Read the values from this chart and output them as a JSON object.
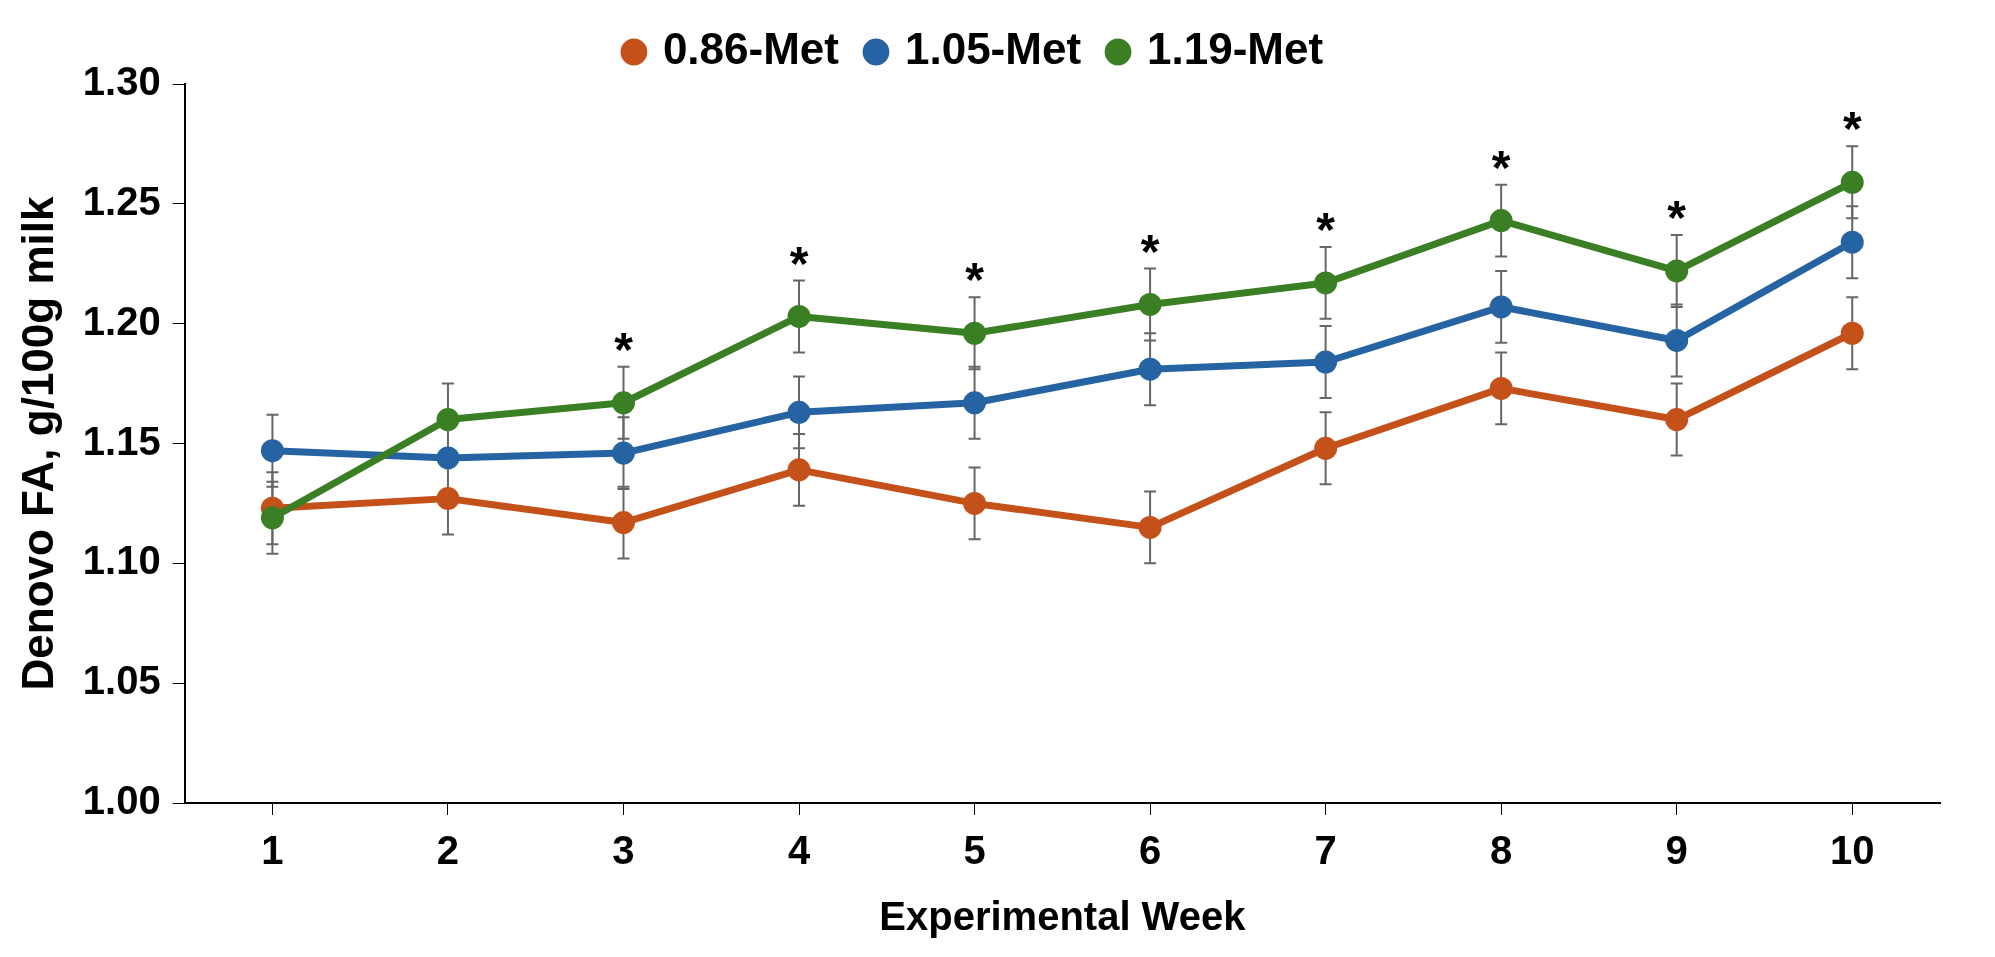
{
  "chart_data": {
    "type": "line",
    "xlabel": "Experimental Week",
    "ylabel": "Denovo FA, g/100g milk",
    "categories": [
      "1",
      "2",
      "3",
      "4",
      "5",
      "6",
      "7",
      "8",
      "9",
      "10"
    ],
    "series": [
      {
        "name": "0.86-Met",
        "color": "#c5511a",
        "values": [
          1.123,
          1.127,
          1.117,
          1.139,
          1.125,
          1.115,
          1.148,
          1.173,
          1.16,
          1.196
        ],
        "errors": [
          0.015,
          0.015,
          0.015,
          0.015,
          0.015,
          0.015,
          0.015,
          0.015,
          0.015,
          0.015
        ]
      },
      {
        "name": "1.05-Met",
        "color": "#2663a3",
        "values": [
          1.147,
          1.144,
          1.146,
          1.163,
          1.167,
          1.181,
          1.184,
          1.207,
          1.193,
          1.234
        ],
        "errors": [
          0.015,
          null,
          0.015,
          0.015,
          0.015,
          0.015,
          0.015,
          0.015,
          0.015,
          0.015
        ]
      },
      {
        "name": "1.19-Met",
        "color": "#3b7f24",
        "values": [
          1.119,
          1.16,
          1.167,
          1.203,
          1.196,
          1.208,
          1.217,
          1.243,
          1.222,
          1.259
        ],
        "errors": [
          0.015,
          0.015,
          0.015,
          0.015,
          0.015,
          0.015,
          0.015,
          0.015,
          0.015,
          0.015
        ]
      }
    ],
    "ylim": [
      1,
      1.3
    ],
    "yticks": [
      {
        "value": 1,
        "label": "1.00"
      },
      {
        "value": 1.05,
        "label": "1.05"
      },
      {
        "value": 1.1,
        "label": "1.10"
      },
      {
        "value": 1.15,
        "label": "1.15"
      },
      {
        "value": 1.2,
        "label": "1.20"
      },
      {
        "value": 1.25,
        "label": "1.25"
      },
      {
        "value": 1.3,
        "label": "1.30"
      }
    ],
    "annotations": [
      {
        "text": "*",
        "x": "3",
        "y": 1.167
      },
      {
        "text": "*",
        "x": "4",
        "y": 1.203
      },
      {
        "text": "*",
        "x": "5",
        "y": 1.196
      },
      {
        "text": "*",
        "x": "6",
        "y": 1.208
      },
      {
        "text": "*",
        "x": "7",
        "y": 1.217
      },
      {
        "text": "*",
        "x": "8",
        "y": 1.243
      },
      {
        "text": "*",
        "x": "9",
        "y": 1.222
      },
      {
        "text": "*",
        "x": "10",
        "y": 1.259
      }
    ],
    "grid": false,
    "legend": "top",
    "marker": "circle",
    "line_style": "solid"
  }
}
